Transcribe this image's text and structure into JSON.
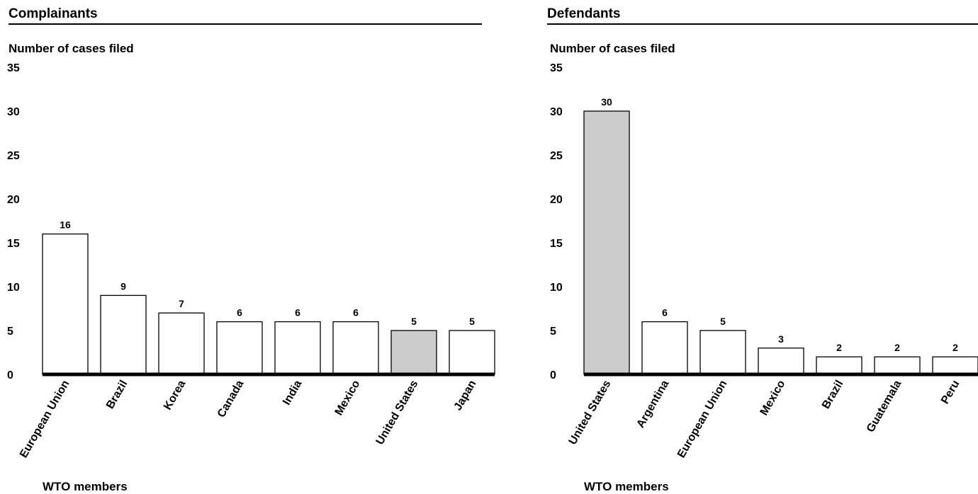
{
  "chart_data": [
    {
      "type": "bar",
      "title": "Complainants",
      "ylabel": "Number of cases filed",
      "xlabel": "WTO members",
      "ylim": [
        0,
        35
      ],
      "yticks": [
        0,
        5,
        10,
        15,
        20,
        25,
        30,
        35
      ],
      "categories": [
        "European Union",
        "Brazil",
        "Korea",
        "Canada",
        "India",
        "Mexico",
        "United States",
        "Japan"
      ],
      "values": [
        16,
        9,
        7,
        6,
        6,
        6,
        5,
        5
      ],
      "highlight": "United States",
      "bar_color": "#ffffff",
      "highlight_color": "#cccccc"
    },
    {
      "type": "bar",
      "title": "Defendants",
      "ylabel": "Number of cases filed",
      "xlabel": "WTO members",
      "ylim": [
        0,
        35
      ],
      "yticks": [
        0,
        5,
        10,
        15,
        20,
        25,
        30,
        35
      ],
      "categories": [
        "United States",
        "Argentina",
        "European Union",
        "Mexico",
        "Brazil",
        "Guatemala",
        "Peru"
      ],
      "values": [
        30,
        6,
        5,
        3,
        2,
        2,
        2
      ],
      "highlight": "United States",
      "bar_color": "#ffffff",
      "highlight_color": "#cccccc"
    }
  ]
}
